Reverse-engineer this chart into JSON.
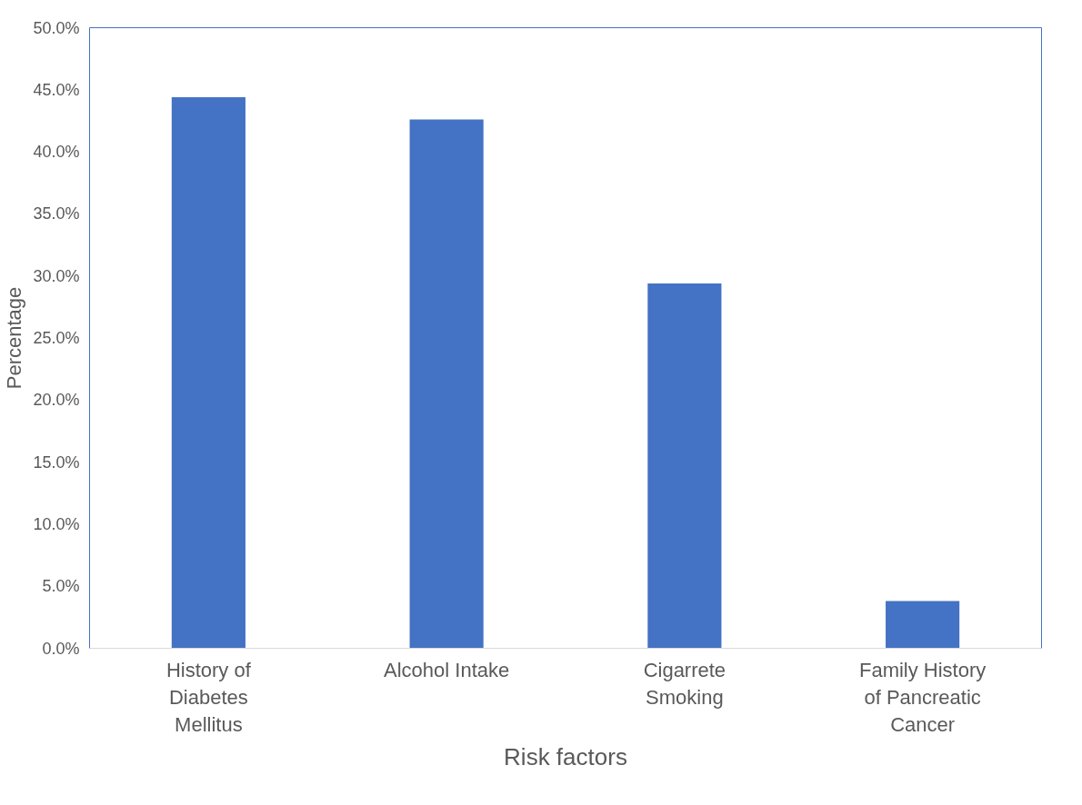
{
  "chart_data": {
    "type": "bar",
    "xlabel": "Risk factors",
    "ylabel": "Percentage",
    "categories": [
      "History of Diabetes Mellitus",
      "Alcohol Intake",
      "Cigarrete Smoking",
      "Family History of Pancreatic Cancer"
    ],
    "values": [
      44.4,
      42.6,
      29.4,
      3.8
    ],
    "color": "#4472c4",
    "ylim": [
      0,
      50
    ],
    "yticks": [
      {
        "value": 0,
        "label": "0.0%"
      },
      {
        "value": 5,
        "label": "5.0%"
      },
      {
        "value": 10,
        "label": "10.0%"
      },
      {
        "value": 15,
        "label": "15.0%"
      },
      {
        "value": 20,
        "label": "20.0%"
      },
      {
        "value": 25,
        "label": "25.0%"
      },
      {
        "value": 30,
        "label": "30.0%"
      },
      {
        "value": 35,
        "label": "35.0%"
      },
      {
        "value": 40,
        "label": "40.0%"
      },
      {
        "value": 45,
        "label": "45.0%"
      },
      {
        "value": 50,
        "label": "50.0%"
      }
    ],
    "grid": false
  }
}
